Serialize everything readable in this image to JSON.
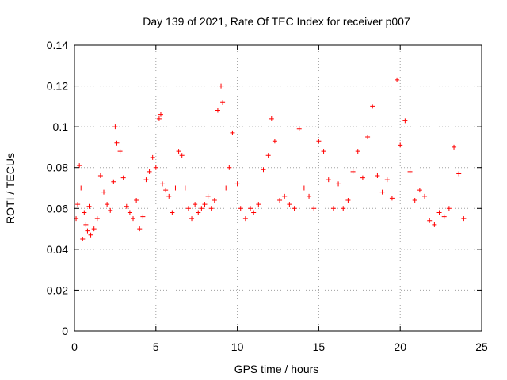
{
  "chart_data": {
    "type": "scatter",
    "title": "Day 139 of 2021, Rate Of TEC Index for receiver p007",
    "xlabel": "GPS time / hours",
    "ylabel": "ROTI / TECUs",
    "xlim": [
      0,
      25
    ],
    "ylim": [
      0,
      0.14
    ],
    "xticks": [
      "0",
      "5",
      "10",
      "15",
      "20",
      "25"
    ],
    "yticks": [
      "0",
      "0.02",
      "0.04",
      "0.06",
      "0.08",
      "0.1",
      "0.12",
      "0.14"
    ],
    "grid": true,
    "marker": "+",
    "color": "#ff0000",
    "x": [
      0.1,
      0.2,
      0.3,
      0.4,
      0.5,
      0.6,
      0.7,
      0.8,
      0.9,
      1.0,
      1.2,
      1.4,
      1.6,
      1.8,
      2.0,
      2.2,
      2.4,
      2.5,
      2.6,
      2.8,
      3.0,
      3.2,
      3.4,
      3.6,
      3.8,
      4.0,
      4.2,
      4.4,
      4.6,
      4.8,
      5.0,
      5.2,
      5.3,
      5.4,
      5.6,
      5.8,
      6.0,
      6.2,
      6.4,
      6.6,
      6.8,
      7.0,
      7.2,
      7.4,
      7.6,
      7.8,
      8.0,
      8.2,
      8.4,
      8.6,
      8.8,
      9.0,
      9.1,
      9.3,
      9.5,
      9.7,
      10.0,
      10.2,
      10.5,
      10.8,
      11.0,
      11.3,
      11.6,
      11.9,
      12.1,
      12.3,
      12.6,
      12.9,
      13.2,
      13.5,
      13.8,
      14.1,
      14.4,
      14.7,
      15.0,
      15.3,
      15.6,
      15.9,
      16.2,
      16.5,
      16.8,
      17.1,
      17.4,
      17.7,
      18.0,
      18.3,
      18.6,
      18.9,
      19.2,
      19.5,
      19.8,
      20.0,
      20.3,
      20.6,
      20.9,
      21.2,
      21.5,
      21.8,
      22.1,
      22.4,
      22.7,
      23.0,
      23.3,
      23.6,
      23.9
    ],
    "y": [
      0.055,
      0.062,
      0.081,
      0.07,
      0.045,
      0.058,
      0.052,
      0.049,
      0.061,
      0.047,
      0.05,
      0.055,
      0.076,
      0.068,
      0.062,
      0.059,
      0.073,
      0.1,
      0.092,
      0.088,
      0.075,
      0.061,
      0.058,
      0.055,
      0.064,
      0.05,
      0.056,
      0.074,
      0.078,
      0.085,
      0.08,
      0.104,
      0.106,
      0.072,
      0.069,
      0.066,
      0.058,
      0.07,
      0.088,
      0.086,
      0.07,
      0.06,
      0.055,
      0.062,
      0.058,
      0.06,
      0.062,
      0.066,
      0.06,
      0.064,
      0.108,
      0.12,
      0.112,
      0.07,
      0.08,
      0.097,
      0.072,
      0.06,
      0.055,
      0.06,
      0.058,
      0.062,
      0.079,
      0.086,
      0.104,
      0.093,
      0.064,
      0.066,
      0.062,
      0.06,
      0.099,
      0.07,
      0.066,
      0.06,
      0.093,
      0.088,
      0.074,
      0.06,
      0.072,
      0.06,
      0.064,
      0.078,
      0.088,
      0.075,
      0.095,
      0.11,
      0.076,
      0.068,
      0.074,
      0.065,
      0.123,
      0.091,
      0.103,
      0.078,
      0.064,
      0.069,
      0.066,
      0.054,
      0.052,
      0.058,
      0.056,
      0.06,
      0.09,
      0.077,
      0.055
    ]
  }
}
